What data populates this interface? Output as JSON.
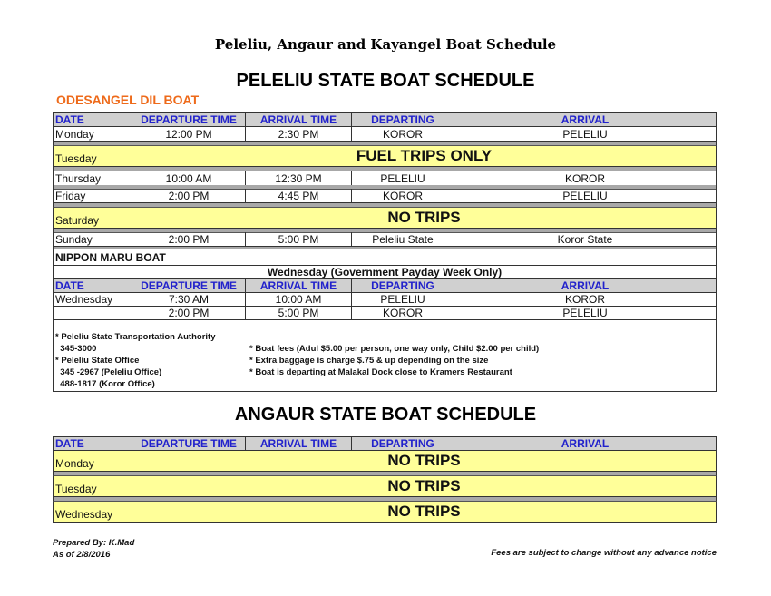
{
  "document_title": "Peleliu, Angaur and Kayangel Boat Schedule",
  "peleliu": {
    "title": "PELELIU STATE BOAT SCHEDULE",
    "boat1": "ODESANGEL DIL BOAT",
    "headers": [
      "DATE",
      "DEPARTURE TIME",
      "ARRIVAL TIME",
      "DEPARTING",
      "ARRIVAL"
    ],
    "rows": [
      {
        "day": "Monday",
        "dep": "12:00 PM",
        "arr": "2:30 PM",
        "from": "KOROR",
        "to": "PELELIU"
      },
      {
        "day": "Tuesday",
        "note": "FUEL TRIPS ONLY"
      },
      {
        "day": "Thursday",
        "dep": "10:00 AM",
        "arr": "12:30 PM",
        "from": "PELELIU",
        "to": "KOROR"
      },
      {
        "day": "Friday",
        "dep": "2:00 PM",
        "arr": "4:45 PM",
        "from": "KOROR",
        "to": "PELELIU"
      },
      {
        "day": "Saturday",
        "note": "NO TRIPS"
      },
      {
        "day": "Sunday",
        "dep": "2:00 PM",
        "arr": "5:00 PM",
        "from": "Peleliu State",
        "to": "Koror State"
      }
    ],
    "boat2": "NIPPON MARU BOAT",
    "boat2_subtitle": "Wednesday (Government Payday Week Only)",
    "rows2": [
      {
        "day": "Wednesday",
        "dep": "7:30 AM",
        "arr": "10:00 AM",
        "from": "PELELIU",
        "to": "KOROR"
      },
      {
        "day": "",
        "dep": "2:00 PM",
        "arr": "5:00 PM",
        "from": "KOROR",
        "to": "PELELIU"
      }
    ],
    "notes_left": [
      "* Peleliu State Transportation Authority",
      "  345-3000",
      "* Peleliu State Office",
      "  345 -2967 (Peleliu Office)",
      "  488-1817 (Koror Office)"
    ],
    "notes_right": [
      "* Boat fees (Adul $5.00 per person, one way only, Child $2.00 per child)",
      "* Extra baggage is charge $.75 & up depending on the size",
      "* Boat is departing at Malakal Dock close to Kramers Restaurant"
    ]
  },
  "angaur": {
    "title": "ANGAUR STATE BOAT SCHEDULE",
    "headers": [
      "DATE",
      "DEPARTURE TIME",
      "ARRIVAL TIME",
      "DEPARTING",
      "ARRIVAL"
    ],
    "rows": [
      {
        "day": "Monday",
        "note": "NO TRIPS"
      },
      {
        "day": "Tuesday",
        "note": "NO TRIPS"
      },
      {
        "day": "Wednesday",
        "note": "NO TRIPS"
      }
    ]
  },
  "footer": {
    "prepared_by": "Prepared By: K.Mad",
    "as_of": "As of 2/8/2016",
    "disclaimer": "Fees are subject to change without any advance notice"
  },
  "colors": {
    "header_text": "#2222cc",
    "boat_label": "#ee6a1a",
    "highlight": "#ffff99"
  }
}
